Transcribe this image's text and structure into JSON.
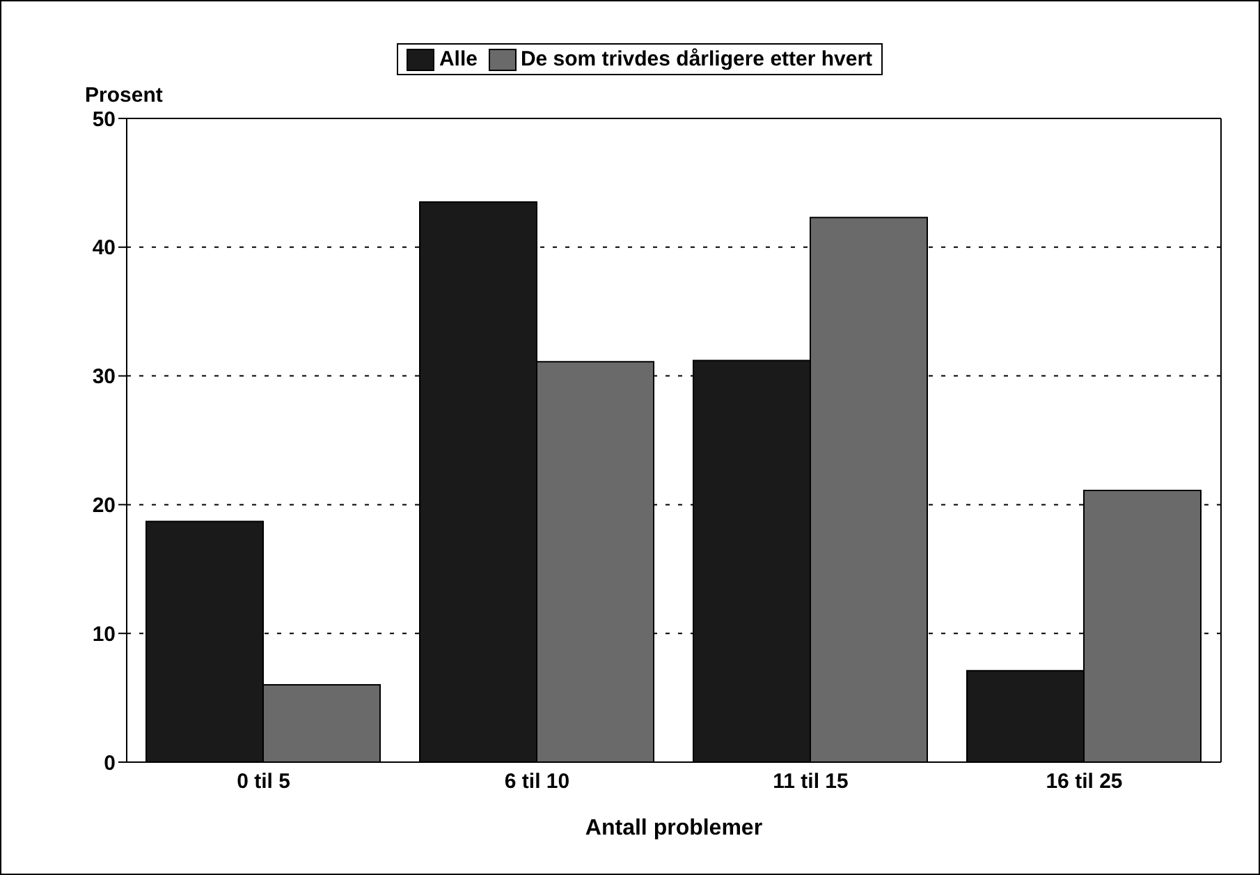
{
  "chart_data": {
    "type": "bar",
    "xlabel": "Antall problemer",
    "ylabel": "Prosent",
    "categories": [
      "0 til 5",
      "6 til 10",
      "11 til 15",
      "16 til 25"
    ],
    "series": [
      {
        "name": "Alle",
        "color": "#1a1a1a",
        "values": [
          18.7,
          43.5,
          31.2,
          7.1
        ]
      },
      {
        "name": "De som trivdes dårligere etter hvert",
        "color": "#6a6a6a",
        "values": [
          6.0,
          31.1,
          42.3,
          21.1
        ]
      }
    ],
    "ylim": [
      0,
      50
    ],
    "yticks": [
      0,
      10,
      20,
      30,
      40,
      50
    ],
    "grid": "y",
    "legend": "top"
  }
}
